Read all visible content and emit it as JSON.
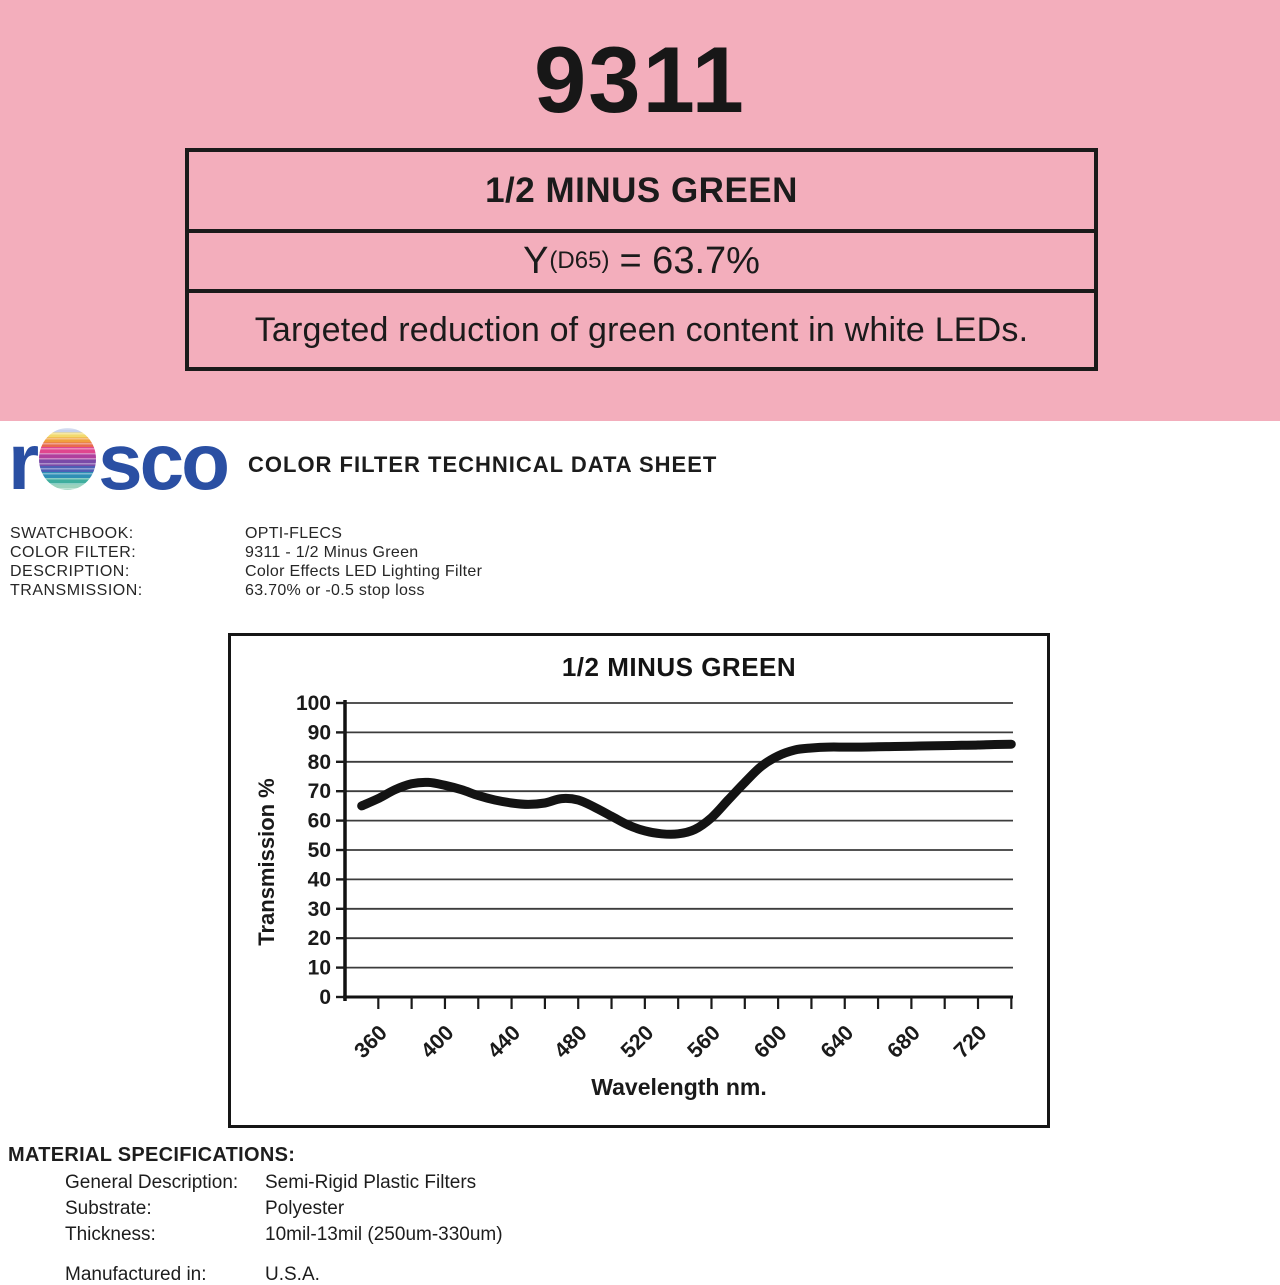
{
  "header": {
    "filter_number": "9311",
    "filter_name": "1/2 MINUS GREEN",
    "y_symbol": "Y",
    "y_subscript": "(D65)",
    "y_value": "= 63.7%",
    "description": "Targeted reduction of green content in white LEDs.",
    "bg_color": "#f3aebc"
  },
  "brand": {
    "logo_r": "r",
    "logo_sco": "sco",
    "logo_color": "#2a4fa3",
    "doc_title": "COLOR FILTER TECHNICAL DATA SHEET"
  },
  "specs": {
    "rows": [
      {
        "label": "SWATCHBOOK:",
        "value": "OPTI-FLECS"
      },
      {
        "label": "COLOR FILTER:",
        "value": "9311 - 1/2 Minus Green"
      },
      {
        "label": "DESCRIPTION:",
        "value": "Color Effects LED Lighting Filter"
      },
      {
        "label": "TRANSMISSION:",
        "value": "63.70% or -0.5 stop loss"
      }
    ]
  },
  "chart_data": {
    "type": "line",
    "title": "1/2 MINUS GREEN",
    "xlabel": "Wavelength nm.",
    "ylabel": "Transmission %",
    "ylim": [
      0,
      100
    ],
    "ytick_step": 10,
    "yticks": [
      0,
      10,
      20,
      30,
      40,
      50,
      60,
      70,
      80,
      90,
      100
    ],
    "x_range_nm": [
      340,
      741
    ],
    "xticks_minor": [
      360,
      380,
      400,
      420,
      440,
      460,
      480,
      500,
      520,
      540,
      560,
      580,
      600,
      620,
      640,
      660,
      680,
      700,
      720,
      740
    ],
    "xtick_labels": [
      360,
      400,
      440,
      480,
      520,
      560,
      600,
      640,
      680,
      720
    ],
    "grid": true,
    "legend": "none",
    "line_color": "#131313",
    "x": [
      350,
      360,
      370,
      380,
      390,
      400,
      410,
      420,
      430,
      440,
      450,
      460,
      470,
      480,
      490,
      500,
      510,
      520,
      530,
      540,
      550,
      560,
      570,
      580,
      590,
      600,
      610,
      620,
      630,
      640,
      650,
      660,
      670,
      680,
      690,
      700,
      710,
      720,
      730,
      740
    ],
    "values": [
      65,
      67.5,
      70.5,
      72.5,
      73,
      72,
      70.5,
      68.5,
      67,
      66,
      65.5,
      66,
      67.5,
      67,
      64.5,
      61.5,
      58.5,
      56.5,
      55.5,
      55.5,
      57,
      61,
      67,
      73,
      78.5,
      82,
      84,
      84.7,
      85,
      85,
      85,
      85.1,
      85.2,
      85.3,
      85.4,
      85.5,
      85.6,
      85.7,
      85.9,
      86
    ]
  },
  "material": {
    "title": "MATERIAL SPECIFICATIONS:",
    "rows": [
      {
        "label": "General Description:",
        "value": "Semi-Rigid Plastic Filters"
      },
      {
        "label": "Substrate:",
        "value": "Polyester"
      },
      {
        "label": "Thickness:",
        "value": "10mil-13mil (250um-330um)"
      }
    ],
    "manufactured_label": "Manufactured in:",
    "manufactured_value": "U.S.A."
  }
}
